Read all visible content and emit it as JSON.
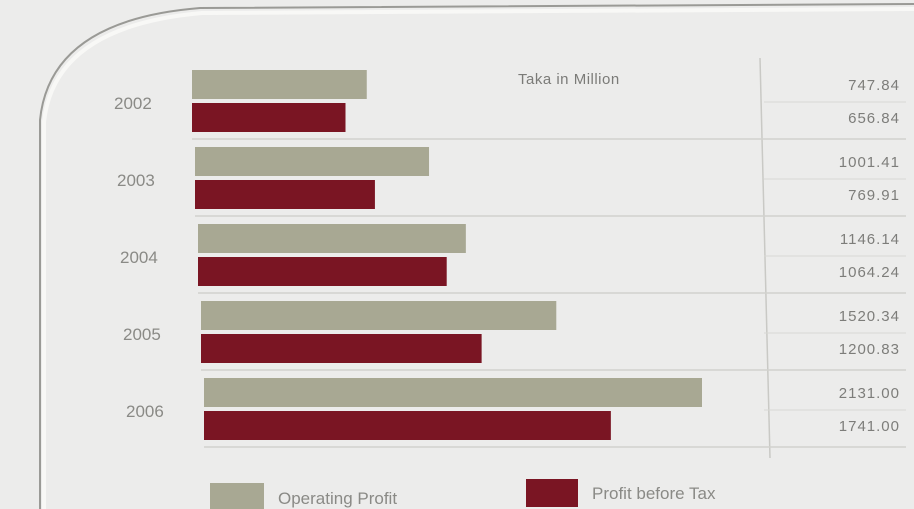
{
  "chart_data": {
    "type": "bar",
    "orientation": "horizontal",
    "categories": [
      "2002",
      "2003",
      "2004",
      "2005",
      "2006"
    ],
    "series": [
      {
        "name": "Operating Profit",
        "values": [
          747.84,
          1001.41,
          1146.14,
          1520.34,
          2131.0
        ],
        "labels": [
          "747.84",
          "1001.41",
          "1146.14",
          "1520.34",
          "2131.00"
        ],
        "color": "#a8a893"
      },
      {
        "name": "Profit before Tax",
        "values": [
          656.84,
          769.91,
          1064.24,
          1200.83,
          1741.0
        ],
        "labels": [
          "656.84",
          "769.91",
          "1064.24",
          "1200.83",
          "1741.00"
        ],
        "color": "#7a1523"
      }
    ],
    "unit_label": "Taka in Million",
    "xlim": [
      0,
      2131.0
    ],
    "grid": true,
    "legend_position": "bottom"
  }
}
